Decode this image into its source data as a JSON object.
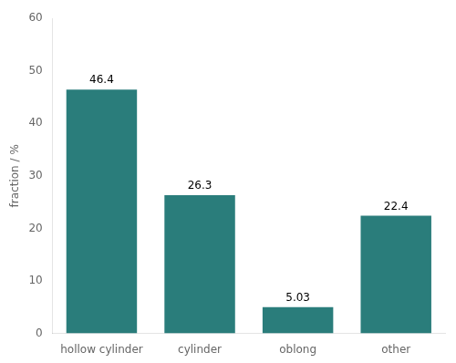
{
  "chart_data": {
    "type": "bar",
    "categories": [
      "hollow cylinder",
      "cylinder",
      "oblong",
      "other"
    ],
    "values": [
      46.4,
      26.3,
      5.03,
      22.4
    ],
    "color": "#2a7d7b",
    "ylabel": "fraction / %",
    "ylim": [
      0,
      60
    ],
    "yticks": [
      0,
      10,
      20,
      30,
      40,
      50,
      60
    ],
    "grid": false,
    "data_labels": true
  }
}
